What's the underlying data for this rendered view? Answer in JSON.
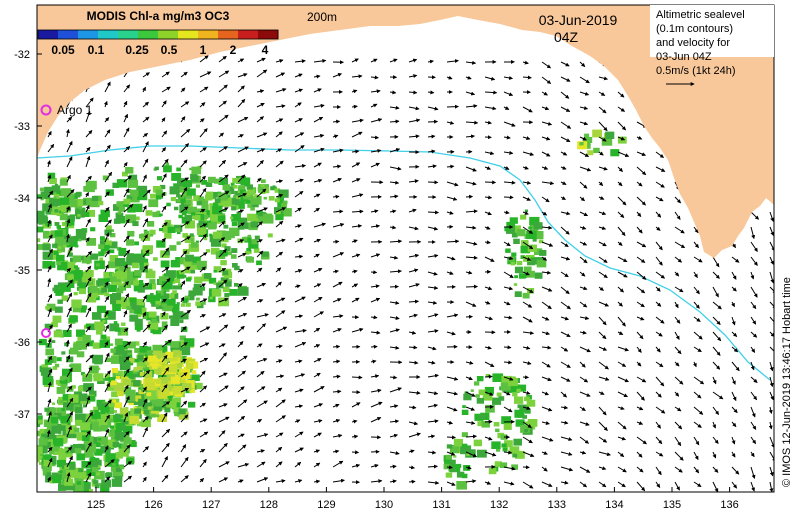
{
  "colorbar": {
    "title": "MODIS Chl-a mg/m3 OC3",
    "tick_labels": [
      "0.05",
      "0.1",
      "0.25",
      "0.5",
      "1",
      "2",
      "4"
    ],
    "colors": [
      "#1a1aa0",
      "#1e50d8",
      "#1e96e6",
      "#20c8c8",
      "#28d28c",
      "#3cc83c",
      "#8cd228",
      "#e6e61e",
      "#f0b41e",
      "#e6641e",
      "#c81e1e",
      "#8c0a0a"
    ]
  },
  "isobath_label": "200m",
  "date": "03-Jun-2019",
  "time": "04Z",
  "legend_note": {
    "lines": [
      "Altimetric sealevel",
      "(0.1m contours)",
      "and velocity for",
      "03-Jun 04Z",
      "0.5m/s (1kt 24h)"
    ]
  },
  "float_label": "Argo 1",
  "credit": "© IMOS 12-Jun-2019 13:46:17 Hobart time",
  "axes": {
    "lon_ticks": [
      "125",
      "126",
      "127",
      "128",
      "129",
      "130",
      "131",
      "132",
      "133",
      "134",
      "135",
      "136"
    ],
    "lat_ticks": [
      "-32",
      "-33",
      "-34",
      "-35",
      "-36",
      "-37"
    ]
  },
  "colors": {
    "land": "#f8c89a",
    "ocean": "#ffffff",
    "isobath": "#40d0e8",
    "chl_low": "#28b428",
    "chl_mid": "#7cd23c",
    "chl_high": "#e6e628",
    "argo_marker": "#e030e0"
  }
}
